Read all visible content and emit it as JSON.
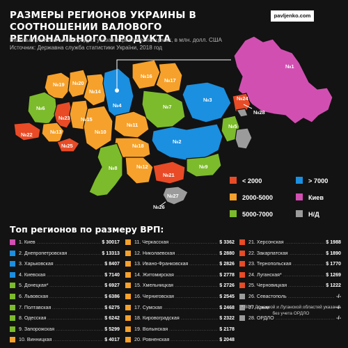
{
  "header": {
    "title": "РАЗМЕРЫ РЕГИОНОВ УКРАИНЫ В СООТНОШЕНИИ ВАЛОВОГО РЕГИОНАЛЬНОГО ПРОДУКТА",
    "subtitle_line1": "Валовый региональный продукт указан в фактических ценах, в млн. долл. США",
    "subtitle_line2": "Источник: Державна служба статистики України, 2018 год",
    "brand": "pavljenko.com"
  },
  "colors": {
    "red": "#e84b26",
    "orange": "#f6a12b",
    "green": "#7cbb2b",
    "blue": "#1b8fe0",
    "gray": "#9b9b9b",
    "pink": "#d24fb2"
  },
  "legend": [
    {
      "label": "< 2000",
      "color": "#e84b26"
    },
    {
      "label": "> 7000",
      "color": "#1b8fe0"
    },
    {
      "label": "2000-5000",
      "color": "#f6a12b"
    },
    {
      "label": "Киев",
      "color": "#d24fb2"
    },
    {
      "label": "5000-7000",
      "color": "#7cbb2b"
    },
    {
      "label": "Н/Д",
      "color": "#9b9b9b"
    }
  ],
  "map_labels": [
    "№1",
    "№2",
    "№3",
    "№4",
    "№5",
    "№6",
    "№7",
    "№8",
    "№9",
    "№10",
    "№11",
    "№12",
    "№13",
    "№14",
    "№15",
    "№16",
    "№17",
    "№18",
    "№19",
    "№20",
    "№21",
    "№22",
    "№23",
    "№24",
    "№25",
    "№26",
    "№27",
    "№28"
  ],
  "top_title": "Топ регионов по размеру ВРП:",
  "ranking": [
    {
      "name": "1. Киев",
      "value": "$ 30017",
      "color": "#d24fb2"
    },
    {
      "name": "2. Днепропетровская",
      "value": "$ 13313",
      "color": "#1b8fe0"
    },
    {
      "name": "3. Харьковская",
      "value": "$ 8407",
      "color": "#1b8fe0"
    },
    {
      "name": "4. Киевская",
      "value": "$ 7140",
      "color": "#1b8fe0"
    },
    {
      "name": "5. Донецкая*",
      "value": "$ 6927",
      "color": "#7cbb2b"
    },
    {
      "name": "6. Львовская",
      "value": "$ 6386",
      "color": "#7cbb2b"
    },
    {
      "name": "7. Полтавская",
      "value": "$ 6275",
      "color": "#7cbb2b"
    },
    {
      "name": "8. Одесская",
      "value": "$ 6242",
      "color": "#7cbb2b"
    },
    {
      "name": "9. Запорожская",
      "value": "$ 5299",
      "color": "#7cbb2b"
    },
    {
      "name": "10. Винницкая",
      "value": "$ 4017",
      "color": "#f6a12b"
    },
    {
      "name": "11. Черкасская",
      "value": "$ 3362",
      "color": "#f6a12b"
    },
    {
      "name": "12. Николаевская",
      "value": "$ 2880",
      "color": "#f6a12b"
    },
    {
      "name": "13. Ивано-Франковская",
      "value": "$ 2826",
      "color": "#f6a12b"
    },
    {
      "name": "14. Житомирская",
      "value": "$ 2778",
      "color": "#f6a12b"
    },
    {
      "name": "15. Хмельницкая",
      "value": "$ 2726",
      "color": "#f6a12b"
    },
    {
      "name": "16. Черниговская",
      "value": "$ 2545",
      "color": "#f6a12b"
    },
    {
      "name": "17. Сумская",
      "value": "$ 2468",
      "color": "#f6a12b"
    },
    {
      "name": "18. Кировоградская",
      "value": "$ 2322",
      "color": "#f6a12b"
    },
    {
      "name": "19. Волынская",
      "value": "$ 2178",
      "color": "#f6a12b"
    },
    {
      "name": "20. Ровненская",
      "value": "$ 2048",
      "color": "#f6a12b"
    },
    {
      "name": "21. Херсонская",
      "value": "$ 1988",
      "color": "#e84b26"
    },
    {
      "name": "22. Закарпатская",
      "value": "$ 1890",
      "color": "#e84b26"
    },
    {
      "name": "23. Тернопольская",
      "value": "$ 1770",
      "color": "#e84b26"
    },
    {
      "name": "24. Луганская*",
      "value": "$ 1269",
      "color": "#e84b26"
    },
    {
      "name": "25. Черновицкая",
      "value": "$ 1222",
      "color": "#e84b26"
    },
    {
      "name": "26. Севастополь",
      "value": "-/-",
      "color": "#9b9b9b"
    },
    {
      "name": "27. Крым",
      "value": "-/-",
      "color": "#9b9b9b"
    },
    {
      "name": "28. ОРДЛО",
      "value": "-/-",
      "color": "#9b9b9b"
    }
  ],
  "footnote": "* ВРП Донецкой и Луганской областей указаны без учета ОРДЛО"
}
